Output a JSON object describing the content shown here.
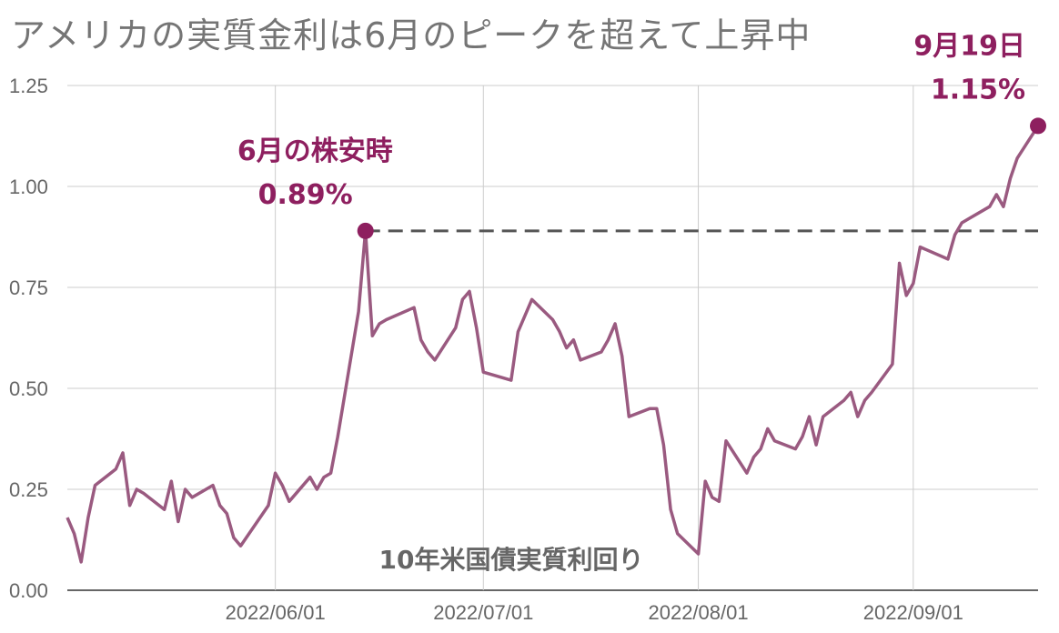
{
  "title": "アメリカの実質金利は6月のピークを超えて上昇中",
  "colors": {
    "line": "#9a5a80",
    "highlight": "#8e1f5f",
    "reference": "#555555",
    "grid": "#cccccc",
    "axis_text": "#666666"
  },
  "chart_data": {
    "type": "line",
    "series": [
      {
        "name": "10年米国債実質利回り",
        "x": [
          "2022-05-02",
          "2022-05-03",
          "2022-05-04",
          "2022-05-05",
          "2022-05-06",
          "2022-05-09",
          "2022-05-10",
          "2022-05-11",
          "2022-05-12",
          "2022-05-13",
          "2022-05-16",
          "2022-05-17",
          "2022-05-18",
          "2022-05-19",
          "2022-05-20",
          "2022-05-23",
          "2022-05-24",
          "2022-05-25",
          "2022-05-26",
          "2022-05-27",
          "2022-05-31",
          "2022-06-01",
          "2022-06-02",
          "2022-06-03",
          "2022-06-06",
          "2022-06-07",
          "2022-06-08",
          "2022-06-09",
          "2022-06-10",
          "2022-06-13",
          "2022-06-14",
          "2022-06-15",
          "2022-06-16",
          "2022-06-17",
          "2022-06-21",
          "2022-06-22",
          "2022-06-23",
          "2022-06-24",
          "2022-06-27",
          "2022-06-28",
          "2022-06-29",
          "2022-06-30",
          "2022-07-01",
          "2022-07-05",
          "2022-07-06",
          "2022-07-07",
          "2022-07-08",
          "2022-07-11",
          "2022-07-12",
          "2022-07-13",
          "2022-07-14",
          "2022-07-15",
          "2022-07-18",
          "2022-07-19",
          "2022-07-20",
          "2022-07-21",
          "2022-07-22",
          "2022-07-25",
          "2022-07-26",
          "2022-07-27",
          "2022-07-28",
          "2022-07-29",
          "2022-08-01",
          "2022-08-02",
          "2022-08-03",
          "2022-08-04",
          "2022-08-05",
          "2022-08-08",
          "2022-08-09",
          "2022-08-10",
          "2022-08-11",
          "2022-08-12",
          "2022-08-15",
          "2022-08-16",
          "2022-08-17",
          "2022-08-18",
          "2022-08-19",
          "2022-08-22",
          "2022-08-23",
          "2022-08-24",
          "2022-08-25",
          "2022-08-26",
          "2022-08-29",
          "2022-08-30",
          "2022-08-31",
          "2022-09-01",
          "2022-09-02",
          "2022-09-06",
          "2022-09-07",
          "2022-09-08",
          "2022-09-09",
          "2022-09-12",
          "2022-09-13",
          "2022-09-14",
          "2022-09-15",
          "2022-09-16",
          "2022-09-19"
        ],
        "values": [
          0.18,
          0.14,
          0.07,
          0.18,
          0.26,
          0.3,
          0.34,
          0.21,
          0.25,
          0.24,
          0.2,
          0.27,
          0.17,
          0.25,
          0.23,
          0.26,
          0.21,
          0.19,
          0.13,
          0.11,
          0.21,
          0.29,
          0.26,
          0.22,
          0.28,
          0.25,
          0.28,
          0.29,
          0.38,
          0.69,
          0.89,
          0.63,
          0.66,
          0.67,
          0.7,
          0.62,
          0.59,
          0.57,
          0.65,
          0.72,
          0.74,
          0.65,
          0.54,
          0.52,
          0.64,
          0.68,
          0.72,
          0.67,
          0.64,
          0.6,
          0.62,
          0.57,
          0.59,
          0.62,
          0.66,
          0.58,
          0.43,
          0.45,
          0.45,
          0.36,
          0.2,
          0.14,
          0.09,
          0.27,
          0.23,
          0.22,
          0.37,
          0.29,
          0.33,
          0.35,
          0.4,
          0.37,
          0.35,
          0.38,
          0.43,
          0.36,
          0.43,
          0.47,
          0.49,
          0.43,
          0.47,
          0.49,
          0.56,
          0.81,
          0.73,
          0.76,
          0.85,
          0.82,
          0.88,
          0.91,
          0.92,
          0.95,
          0.98,
          0.95,
          1.02,
          1.07,
          1.15
        ]
      }
    ],
    "x_ticks": [
      "2022/06/01",
      "2022/07/01",
      "2022/08/01",
      "2022/09/01"
    ],
    "x_tick_dates": [
      "2022-06-01",
      "2022-07-01",
      "2022-08-01",
      "2022-09-01"
    ],
    "xlim": [
      "2022-05-02",
      "2022-09-19"
    ],
    "y_ticks": [
      "0.00",
      "0.25",
      "0.50",
      "0.75",
      "1.00",
      "1.25"
    ],
    "ylim": [
      0,
      1.25
    ],
    "grid": true,
    "reference_line": {
      "value": 0.89,
      "from": "2022-06-14",
      "to": "2022-09-19",
      "style": "dashed"
    },
    "annotations": [
      {
        "date": "2022-06-14",
        "value": 0.89,
        "label": "6月の株安時",
        "value_label": "0.89%"
      },
      {
        "date": "2022-09-19",
        "value": 1.15,
        "label": "9月19日",
        "value_label": "1.15%"
      }
    ],
    "series_label": "10年米国債実質利回り"
  }
}
